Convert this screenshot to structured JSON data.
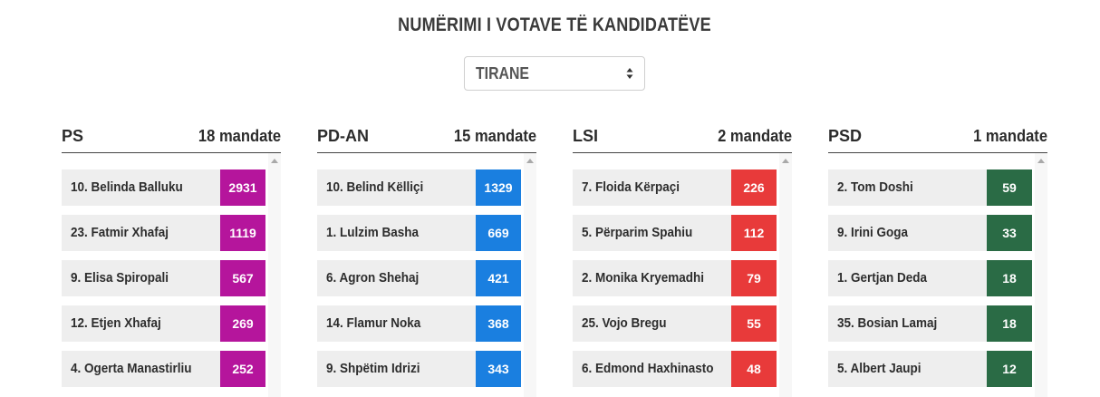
{
  "page": {
    "title": "NUMËRIMI I VOTAVE TË KANDIDATËVE"
  },
  "region_select": {
    "selected": "TIRANE"
  },
  "parties": [
    {
      "name": "PS",
      "seats_label": "18 mandate",
      "color": "#b5159c",
      "candidates": [
        {
          "name": "10. Belinda Balluku",
          "votes": "2931"
        },
        {
          "name": "23. Fatmir Xhafaj",
          "votes": "1119"
        },
        {
          "name": "9. Elisa Spiropali",
          "votes": "567"
        },
        {
          "name": "12. Etjen Xhafaj",
          "votes": "269"
        },
        {
          "name": "4. Ogerta Manastirliu",
          "votes": "252"
        }
      ]
    },
    {
      "name": "PD-AN",
      "seats_label": "15 mandate",
      "color": "#1a7fe0",
      "candidates": [
        {
          "name": "10. Belind Këlliçi",
          "votes": "1329"
        },
        {
          "name": "1. Lulzim Basha",
          "votes": "669"
        },
        {
          "name": "6. Agron Shehaj",
          "votes": "421"
        },
        {
          "name": "14. Flamur Noka",
          "votes": "368"
        },
        {
          "name": "9. Shpëtim Idrizi",
          "votes": "343"
        }
      ]
    },
    {
      "name": "LSI",
      "seats_label": "2 mandate",
      "color": "#e83a3a",
      "candidates": [
        {
          "name": "7. Floida Kërpaçi",
          "votes": "226"
        },
        {
          "name": "5. Përparim Spahiu",
          "votes": "112"
        },
        {
          "name": "2. Monika Kryemadhi",
          "votes": "79"
        },
        {
          "name": "25. Vojo Bregu",
          "votes": "55"
        },
        {
          "name": "6. Edmond Haxhinasto",
          "votes": "48"
        }
      ]
    },
    {
      "name": "PSD",
      "seats_label": "1 mandate",
      "color": "#2a6b45",
      "candidates": [
        {
          "name": "2. Tom Doshi",
          "votes": "59"
        },
        {
          "name": "9. Irini Goga",
          "votes": "33"
        },
        {
          "name": "1. Gertjan Deda",
          "votes": "18"
        },
        {
          "name": "35. Bosian Lamaj",
          "votes": "18"
        },
        {
          "name": "5. Albert Jaupi",
          "votes": "12"
        }
      ]
    }
  ]
}
